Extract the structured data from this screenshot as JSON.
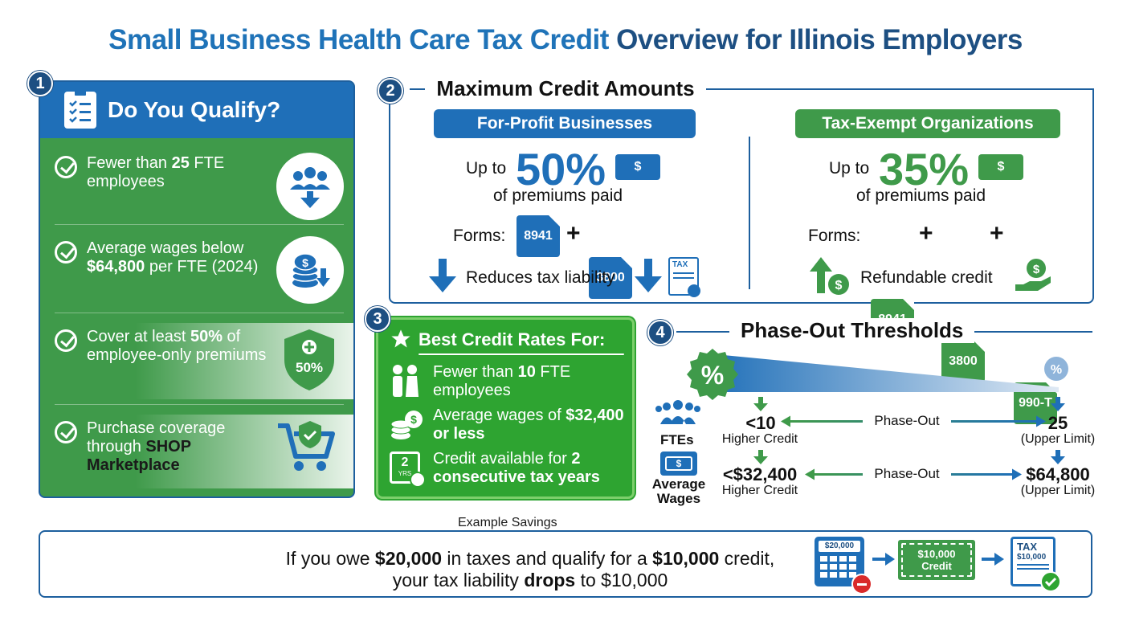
{
  "title": {
    "part1": "Small Business Health Care Tax Credit",
    "part2": " Overview for Illinois Employers"
  },
  "section1": {
    "number": "1",
    "heading": "Do You Qualify?",
    "items": [
      {
        "pre": "Fewer than ",
        "bold": "25",
        "post": " FTE employees"
      },
      {
        "pre": "Average wages below ",
        "bold": "$64,800",
        "post": " per FTE (2024)"
      },
      {
        "pre": "Cover at least ",
        "bold": "50%",
        "post": " of employee-only premiums"
      },
      {
        "pre": "Purchase coverage through ",
        "bold": "SHOP Marketplace",
        "post": ""
      }
    ],
    "shield_label": "50%"
  },
  "section2": {
    "number": "2",
    "heading": "Maximum Credit Amounts",
    "forprofit": {
      "label": "For-Profit Businesses",
      "up_to": "Up to",
      "percent": "50%",
      "sub": "of premiums paid",
      "forms_label": "Forms:",
      "forms": [
        "8941",
        "3800"
      ],
      "note": "Reduces tax liability",
      "tax_doc": "TAX"
    },
    "exempt": {
      "label": "Tax-Exempt Organizations",
      "up_to": "Up to",
      "percent": "35%",
      "sub": "of premiums paid",
      "forms_label": "Forms:",
      "forms": [
        "8941",
        "3800",
        "990-T"
      ],
      "note": "Refundable credit"
    }
  },
  "section3": {
    "number": "3",
    "heading": "Best Credit Rates For:",
    "rows": [
      {
        "pre": "Fewer than ",
        "bold": "10",
        "post": " FTE employees"
      },
      {
        "pre": "Average wages of ",
        "bold": "$32,400 or less",
        "post": ""
      },
      {
        "pre": "Credit available for ",
        "bold": "2 consecutive tax years",
        "post": ""
      }
    ],
    "calendar_num": "2",
    "calendar_sub": "YRS"
  },
  "section4": {
    "number": "4",
    "heading": "Phase-Out Thresholds",
    "ftes_label": "FTEs",
    "wages_label": "Average Wages",
    "rows": [
      {
        "low": "<10",
        "low_sub": "Higher Credit",
        "mid": "Phase-Out",
        "high": "25",
        "high_sub": "(Upper Limit)"
      },
      {
        "low": "<$32,400",
        "low_sub": "Higher Credit",
        "mid": "Phase-Out",
        "high": "$64,800",
        "high_sub": "(Upper Limit)"
      }
    ]
  },
  "section5": {
    "heading": "Example Savings",
    "line1_pre": "If you owe ",
    "line1_b1": "$20,000",
    "line1_mid": " in taxes and qualify for a ",
    "line1_b2": "$10,000",
    "line1_post": " credit,",
    "line2_pre": "your tax liability ",
    "line2_b": "drops",
    "line2_post": " to $10,000",
    "calc_value": "$20,000",
    "ticket_value": "$10,000",
    "ticket_label": "Credit",
    "tax_doc_label": "TAX",
    "tax_doc_value": "$10,000"
  },
  "colors": {
    "blue": "#1f6fb8",
    "navy": "#1d4f82",
    "green": "#3f9a4a",
    "bright_green": "#2ea431"
  }
}
